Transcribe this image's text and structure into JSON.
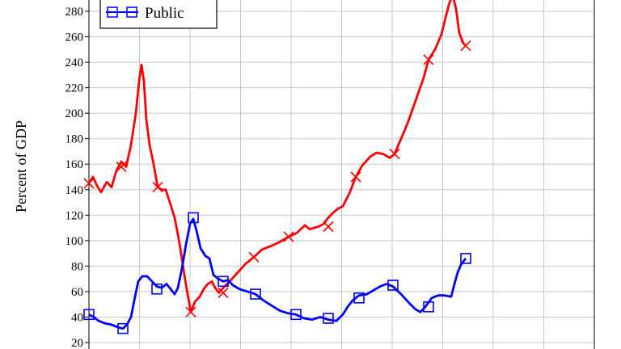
{
  "chart_data": {
    "type": "line",
    "ylabel": "Percent of GDP",
    "ylim": [
      20,
      280
    ],
    "yticks": [
      20,
      40,
      60,
      80,
      100,
      120,
      140,
      160,
      180,
      200,
      220,
      240,
      260,
      280
    ],
    "grid": true,
    "legend_position": "top-left",
    "series": [
      {
        "name": "",
        "color": "#ff0000",
        "marker": "x",
        "values": [
          [
            0,
            145
          ],
          [
            5,
            150
          ],
          [
            10,
            143
          ],
          [
            15,
            138
          ],
          [
            22,
            146
          ],
          [
            28,
            142
          ],
          [
            34,
            155
          ],
          [
            40,
            162
          ],
          [
            46,
            158
          ],
          [
            52,
            175
          ],
          [
            58,
            200
          ],
          [
            62,
            225
          ],
          [
            65,
            238
          ],
          [
            68,
            225
          ],
          [
            71,
            195
          ],
          [
            75,
            175
          ],
          [
            80,
            160
          ],
          [
            85,
            142
          ],
          [
            90,
            140
          ],
          [
            95,
            140
          ],
          [
            100,
            130
          ],
          [
            106,
            118
          ],
          [
            112,
            98
          ],
          [
            118,
            73
          ],
          [
            122,
            58
          ],
          [
            126,
            44
          ],
          [
            131,
            52
          ],
          [
            137,
            56
          ],
          [
            142,
            62
          ],
          [
            147,
            66
          ],
          [
            152,
            68
          ],
          [
            156,
            63
          ],
          [
            161,
            59
          ],
          [
            166,
            63
          ],
          [
            174,
            68
          ],
          [
            184,
            75
          ],
          [
            194,
            82
          ],
          [
            204,
            87
          ],
          [
            214,
            93
          ],
          [
            226,
            96
          ],
          [
            236,
            99
          ],
          [
            247,
            103
          ],
          [
            257,
            106
          ],
          [
            267,
            112
          ],
          [
            273,
            109
          ],
          [
            278,
            110
          ],
          [
            284,
            111
          ],
          [
            290,
            113
          ],
          [
            296,
            118
          ],
          [
            302,
            122
          ],
          [
            308,
            125
          ],
          [
            314,
            127
          ],
          [
            322,
            137
          ],
          [
            330,
            150
          ],
          [
            338,
            159
          ],
          [
            348,
            166
          ],
          [
            356,
            169
          ],
          [
            364,
            168
          ],
          [
            372,
            165
          ],
          [
            378,
            168
          ],
          [
            384,
            177
          ],
          [
            394,
            192
          ],
          [
            404,
            210
          ],
          [
            414,
            228
          ],
          [
            420,
            242
          ],
          [
            428,
            250
          ],
          [
            436,
            262
          ],
          [
            441,
            275
          ],
          [
            446,
            287
          ],
          [
            450,
            292
          ],
          [
            454,
            282
          ],
          [
            458,
            263
          ],
          [
            463,
            255
          ],
          [
            466,
            253
          ]
        ],
        "marker_points": [
          [
            0,
            145
          ],
          [
            40,
            158
          ],
          [
            85,
            142
          ],
          [
            126,
            44
          ],
          [
            166,
            59
          ],
          [
            204,
            87
          ],
          [
            247,
            103
          ],
          [
            296,
            111
          ],
          [
            330,
            150
          ],
          [
            378,
            168
          ],
          [
            420,
            242
          ],
          [
            466,
            253
          ]
        ]
      },
      {
        "name": "Public",
        "color": "#0000ff",
        "marker": "square",
        "values": [
          [
            0,
            42
          ],
          [
            6,
            40
          ],
          [
            12,
            37
          ],
          [
            20,
            35
          ],
          [
            28,
            34
          ],
          [
            36,
            32
          ],
          [
            42,
            31
          ],
          [
            47,
            34
          ],
          [
            52,
            40
          ],
          [
            57,
            56
          ],
          [
            61,
            68
          ],
          [
            66,
            72
          ],
          [
            72,
            72
          ],
          [
            78,
            68
          ],
          [
            84,
            64
          ],
          [
            90,
            63
          ],
          [
            96,
            66
          ],
          [
            101,
            62
          ],
          [
            106,
            58
          ],
          [
            110,
            63
          ],
          [
            115,
            78
          ],
          [
            120,
            97
          ],
          [
            125,
            113
          ],
          [
            129,
            117
          ],
          [
            133,
            108
          ],
          [
            138,
            94
          ],
          [
            144,
            88
          ],
          [
            149,
            86
          ],
          [
            154,
            73
          ],
          [
            160,
            70
          ],
          [
            166,
            68
          ],
          [
            172,
            69
          ],
          [
            178,
            65
          ],
          [
            186,
            62
          ],
          [
            196,
            60
          ],
          [
            206,
            58
          ],
          [
            216,
            53
          ],
          [
            226,
            49
          ],
          [
            236,
            45
          ],
          [
            246,
            43
          ],
          [
            256,
            42
          ],
          [
            266,
            39
          ],
          [
            276,
            38
          ],
          [
            286,
            40
          ],
          [
            296,
            38
          ],
          [
            306,
            37
          ],
          [
            314,
            42
          ],
          [
            320,
            48
          ],
          [
            326,
            53
          ],
          [
            334,
            57
          ],
          [
            344,
            58
          ],
          [
            352,
            61
          ],
          [
            360,
            64
          ],
          [
            368,
            66
          ],
          [
            376,
            64
          ],
          [
            386,
            58
          ],
          [
            396,
            51
          ],
          [
            404,
            46
          ],
          [
            410,
            44
          ],
          [
            416,
            48
          ],
          [
            424,
            55
          ],
          [
            432,
            57
          ],
          [
            440,
            57
          ],
          [
            448,
            56
          ],
          [
            452,
            66
          ],
          [
            456,
            75
          ],
          [
            460,
            81
          ],
          [
            466,
            86
          ]
        ],
        "marker_points": [
          [
            0,
            42
          ],
          [
            42,
            31
          ],
          [
            84,
            62
          ],
          [
            129,
            118
          ],
          [
            166,
            68
          ],
          [
            206,
            58
          ],
          [
            256,
            42
          ],
          [
            296,
            39
          ],
          [
            334,
            55
          ],
          [
            376,
            65
          ],
          [
            420,
            48
          ],
          [
            466,
            86
          ]
        ]
      }
    ]
  }
}
